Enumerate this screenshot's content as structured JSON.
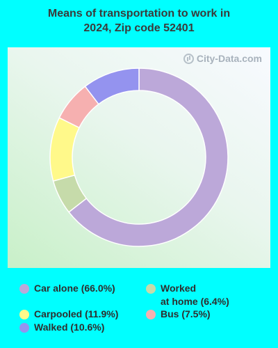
{
  "chart_data": {
    "type": "pie",
    "title_line1": "Means of transportation to work in",
    "title_line2": "2024, Zip code 52401",
    "watermark": "City-Data.com",
    "slices": [
      {
        "label": "Car alone (66.0%)",
        "value": 66.0,
        "color": "#bca8d9"
      },
      {
        "label_line1": "Worked",
        "label_line2": "at home (6.4%)",
        "value": 6.4,
        "color": "#c6dbaa"
      },
      {
        "label": "Carpooled (11.9%)",
        "value": 11.9,
        "color": "#fff98a"
      },
      {
        "label": "Bus (7.5%)",
        "value": 7.5,
        "color": "#f6b0b0"
      },
      {
        "label": "Walked (10.6%)",
        "value": 10.6,
        "color": "#9493ef"
      }
    ]
  }
}
